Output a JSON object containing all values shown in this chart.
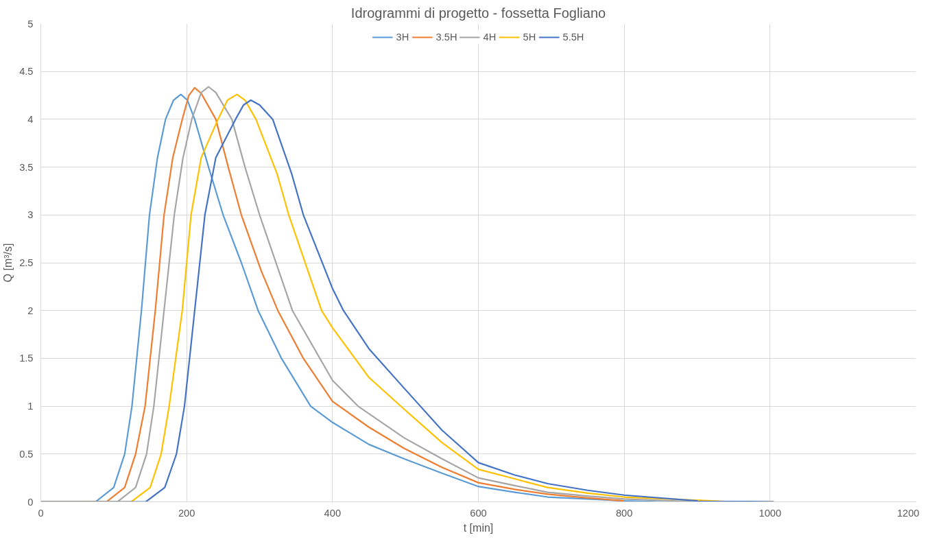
{
  "chart_data": {
    "type": "line",
    "title": "Idrogrammi di progetto - fossetta Fogliano",
    "xlabel": "t [min]",
    "ylabel": "Q [m³/s]",
    "xlim": [
      0,
      1200
    ],
    "xticks": [
      0,
      200,
      400,
      600,
      800,
      1000,
      1200
    ],
    "ylim": [
      0,
      5
    ],
    "yticks": [
      0,
      0.5,
      1,
      1.5,
      2,
      2.5,
      3,
      3.5,
      4,
      4.5,
      5
    ],
    "grid": true,
    "legend": "top",
    "marker": "none",
    "line_style": "solid",
    "series": [
      {
        "name": "3H",
        "color": "#5b9bd5",
        "x": [
          0,
          75,
          100,
          115,
          125,
          138,
          149,
          160,
          171,
          182,
          192,
          201,
          211,
          230,
          250,
          275,
          298,
          330,
          370,
          400,
          450,
          498,
          550,
          600,
          650,
          695,
          750,
          800,
          850,
          1005
        ],
        "values": [
          0,
          0,
          0.15,
          0.5,
          1,
          2,
          3,
          3.6,
          4,
          4.2,
          4.26,
          4.2,
          4,
          3.5,
          3,
          2.5,
          2,
          1.5,
          1,
          0.83,
          0.6,
          0.45,
          0.3,
          0.16,
          0.1,
          0.05,
          0.03,
          0.01,
          0,
          0
        ]
      },
      {
        "name": "3.5H",
        "color": "#ed7d31",
        "x": [
          0,
          90,
          115,
          130,
          143,
          157,
          169,
          181,
          194,
          203,
          211,
          220,
          240,
          257,
          275,
          302,
          325,
          360,
          400,
          450,
          498,
          550,
          600,
          650,
          695,
          750,
          800
        ],
        "values": [
          0,
          0,
          0.15,
          0.5,
          1,
          2,
          3,
          3.6,
          4,
          4.25,
          4.33,
          4.27,
          4,
          3.5,
          3,
          2.42,
          2,
          1.5,
          1.05,
          0.78,
          0.56,
          0.36,
          0.2,
          0.13,
          0.08,
          0.04,
          0.01
        ]
      },
      {
        "name": "4H",
        "color": "#a5a5a5",
        "x": [
          0,
          105,
          130,
          145,
          155,
          169,
          183,
          195,
          207,
          220,
          230,
          240,
          262,
          280,
          300,
          345,
          400,
          435,
          498,
          550,
          600,
          650,
          695,
          750,
          800,
          900,
          1005
        ],
        "values": [
          0,
          0,
          0.15,
          0.5,
          1,
          2,
          3,
          3.6,
          4,
          4.28,
          4.34,
          4.28,
          4,
          3.5,
          3,
          2,
          1.27,
          1,
          0.67,
          0.45,
          0.25,
          0.17,
          0.1,
          0.06,
          0.03,
          0,
          0
        ]
      },
      {
        "name": "5H",
        "color": "#ffc000",
        "x": [
          0,
          124,
          150,
          165,
          176,
          194,
          206,
          220,
          243,
          256,
          269,
          280,
          295,
          324,
          340,
          385,
          400,
          450,
          498,
          550,
          600,
          650,
          695,
          750,
          800,
          950,
          1005
        ],
        "values": [
          0,
          0,
          0.15,
          0.5,
          1,
          2,
          3,
          3.6,
          4,
          4.2,
          4.26,
          4.2,
          4,
          3.43,
          3,
          2,
          1.82,
          1.3,
          0.97,
          0.62,
          0.34,
          0.24,
          0.15,
          0.09,
          0.05,
          0,
          0
        ]
      },
      {
        "name": "5.5H",
        "color": "#4472c4",
        "x": [
          0,
          144,
          170,
          186,
          197,
          211,
          225,
          240,
          267,
          278,
          288,
          300,
          318,
          344,
          360,
          400,
          415,
          450,
          498,
          550,
          600,
          650,
          695,
          750,
          800,
          900,
          1005
        ],
        "values": [
          0,
          0,
          0.15,
          0.5,
          1,
          2,
          3,
          3.6,
          4,
          4.15,
          4.2,
          4.15,
          4,
          3.43,
          3,
          2.23,
          2,
          1.6,
          1.19,
          0.75,
          0.41,
          0.28,
          0.19,
          0.12,
          0.07,
          0.01,
          0
        ]
      }
    ]
  }
}
